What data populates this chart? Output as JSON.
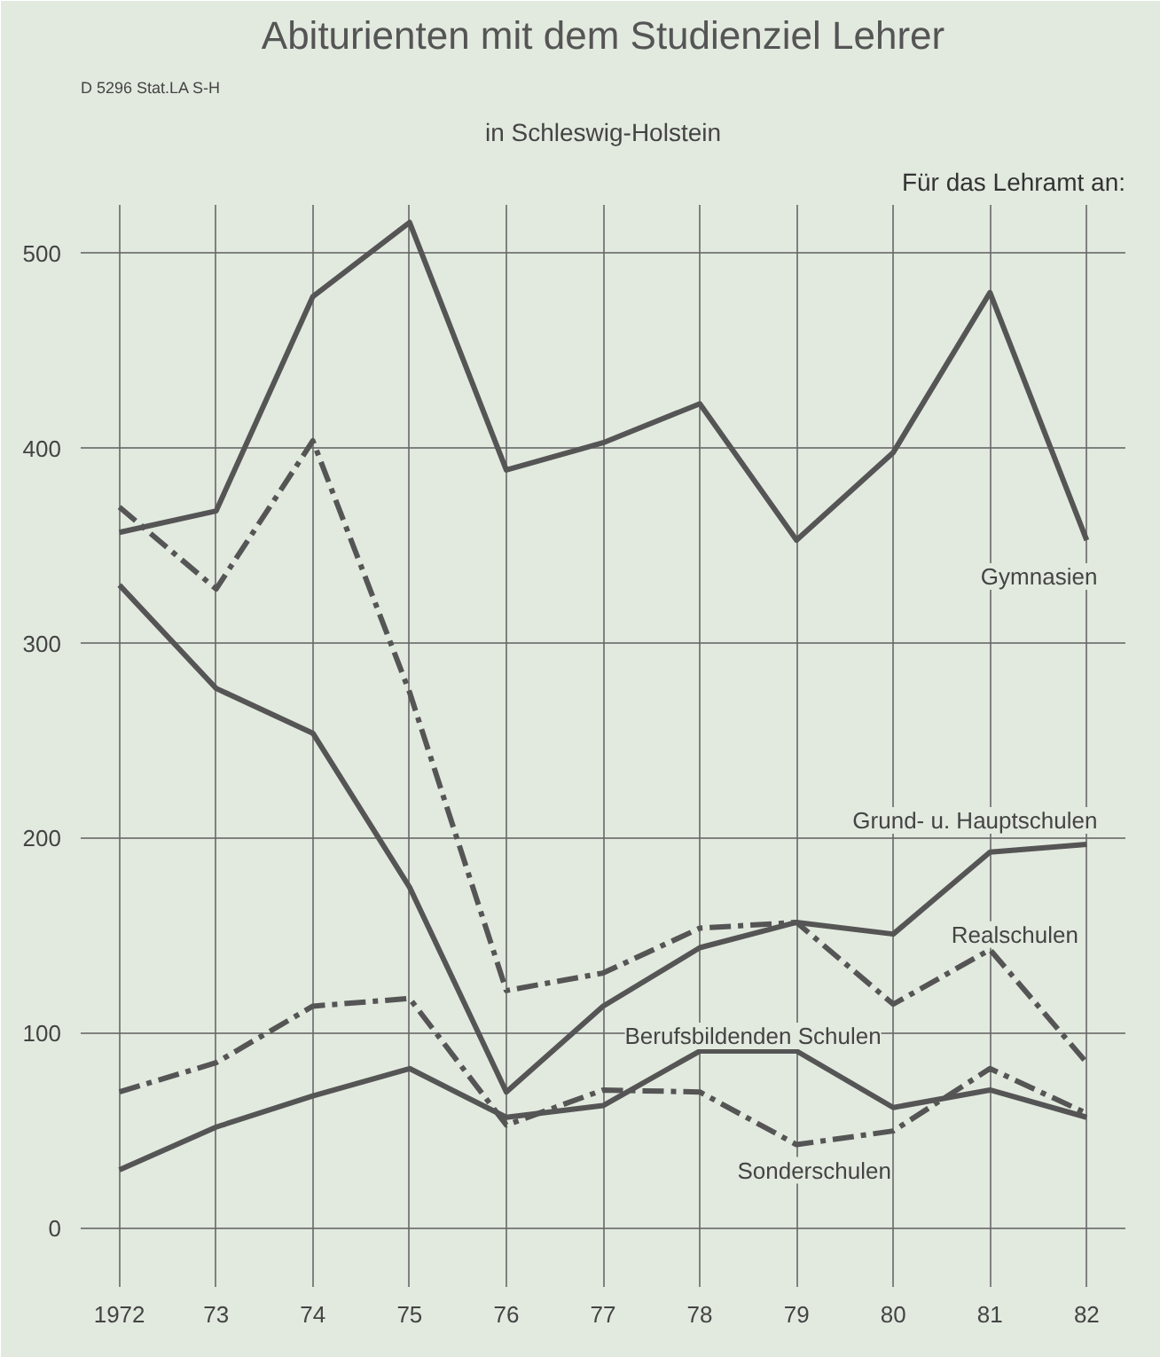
{
  "chart_data": {
    "type": "line",
    "title": "Abiturienten mit dem Studienziel Lehrer",
    "subtitle": "in Schleswig-Holstein",
    "annotations": [
      "D 5296 Stat.LA S-H"
    ],
    "legend_title": "Für das Lehramt an:",
    "x": [
      1972,
      1973,
      1974,
      1975,
      1976,
      1977,
      1978,
      1979,
      1980,
      1981,
      1982
    ],
    "xlim": [
      1971.6,
      1982.4
    ],
    "xticks": [
      {
        "value": 1972,
        "label": "1972"
      },
      {
        "value": 1973,
        "label": "73"
      },
      {
        "value": 1974,
        "label": "74"
      },
      {
        "value": 1975,
        "label": "75"
      },
      {
        "value": 1976,
        "label": "76"
      },
      {
        "value": 1977,
        "label": "77"
      },
      {
        "value": 1978,
        "label": "78"
      },
      {
        "value": 1979,
        "label": "79"
      },
      {
        "value": 1980,
        "label": "80"
      },
      {
        "value": 1981,
        "label": "81"
      },
      {
        "value": 1982,
        "label": "82"
      }
    ],
    "ylim": [
      -30,
      525
    ],
    "yticks": [
      0,
      100,
      200,
      300,
      400,
      500
    ],
    "grid": true,
    "marker": "none",
    "series": [
      {
        "name": "Gymnasien",
        "color": "#555555",
        "line_style": "solid",
        "values": [
          357,
          368,
          478,
          516,
          389,
          403,
          423,
          353,
          398,
          480,
          353
        ]
      },
      {
        "name": "Grund- u. Hauptschulen",
        "color": "#555555",
        "line_style": "solid",
        "values": [
          330,
          277,
          254,
          175,
          70,
          114,
          144,
          157,
          151,
          193,
          197
        ]
      },
      {
        "name": "Realschulen",
        "color": "#555555",
        "line_style": "dashdot",
        "values": [
          370,
          328,
          404,
          275,
          122,
          131,
          154,
          157,
          115,
          143,
          85
        ]
      },
      {
        "name": "Berufsbildenden Schulen",
        "color": "#555555",
        "line_style": "solid",
        "values": [
          30,
          52,
          68,
          82,
          57,
          63,
          91,
          91,
          62,
          71,
          57
        ]
      },
      {
        "name": "Sonderschulen",
        "color": "#555555",
        "line_style": "dashdot",
        "values": [
          70,
          85,
          114,
          118,
          53,
          71,
          70,
          43,
          50,
          82,
          59
        ]
      }
    ]
  }
}
